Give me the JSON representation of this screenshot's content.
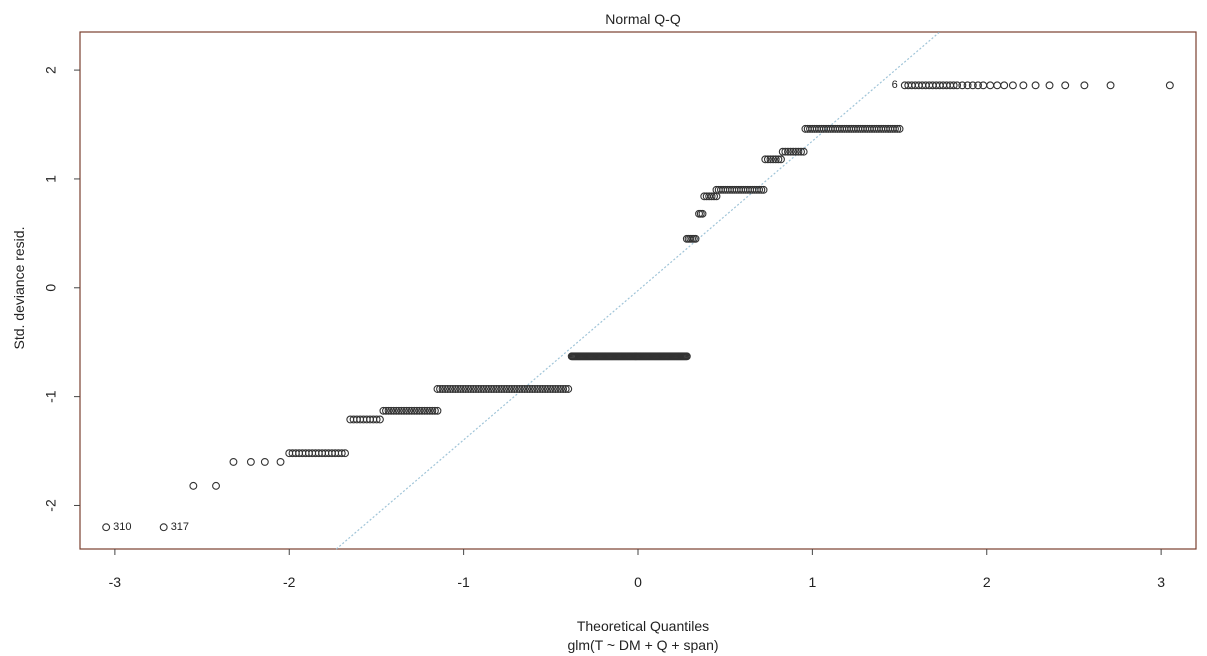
{
  "chart_data": {
    "type": "scatter",
    "title": "Normal Q-Q",
    "xlabel": "Theoretical Quantiles",
    "xlabel_sub": "glm(T ~ DM + Q + span)",
    "ylabel": "Std. deviance resid.",
    "xlim": [
      -3.2,
      3.2
    ],
    "ylim": [
      -2.4,
      2.35
    ],
    "x_ticks": [
      -3,
      -2,
      -1,
      0,
      1,
      2,
      3
    ],
    "y_ticks": [
      -2,
      -1,
      0,
      1,
      2
    ],
    "reference_line": {
      "points": [
        [
          -1.73,
          -2.4
        ],
        [
          1.73,
          2.35
        ]
      ],
      "color": "#9fc4d8",
      "style": "dotted"
    },
    "colors": {
      "points": "#333333",
      "frame": "#7a3f2f"
    },
    "groups": [
      {
        "y": -2.2,
        "x": [
          -3.05
        ]
      },
      {
        "y": -2.2,
        "x": [
          -2.72
        ]
      },
      {
        "y": -1.82,
        "x": [
          -2.55,
          -2.42
        ]
      },
      {
        "y": -1.6,
        "x": [
          -2.32,
          -2.22,
          -2.14,
          -2.05
        ]
      },
      {
        "y": -1.52,
        "x_start": -2.0,
        "x_end": -1.68,
        "n": 18
      },
      {
        "y": -1.21,
        "x_start": -1.65,
        "x_end": -1.48,
        "n": 10
      },
      {
        "y": -1.13,
        "x_start": -1.46,
        "x_end": -1.15,
        "n": 22
      },
      {
        "y": -0.93,
        "x_start": -1.15,
        "x_end": -0.4,
        "n": 52
      },
      {
        "y": -0.63,
        "x_start": -0.38,
        "x_end": 0.28,
        "n": 110
      },
      {
        "y": 0.45,
        "x_start": 0.28,
        "x_end": 0.33,
        "n": 6
      },
      {
        "y": 0.68,
        "x_start": 0.35,
        "x_end": 0.37,
        "n": 3
      },
      {
        "y": 0.84,
        "x_start": 0.38,
        "x_end": 0.45,
        "n": 6
      },
      {
        "y": 0.9,
        "x_start": 0.45,
        "x_end": 0.72,
        "n": 22
      },
      {
        "y": 1.18,
        "x_start": 0.73,
        "x_end": 0.82,
        "n": 7
      },
      {
        "y": 1.25,
        "x_start": 0.83,
        "x_end": 0.95,
        "n": 9
      },
      {
        "y": 1.46,
        "x_start": 0.96,
        "x_end": 1.5,
        "n": 42
      },
      {
        "y": 1.86,
        "x": [
          1.53,
          1.55,
          1.57,
          1.59,
          1.61,
          1.63,
          1.65,
          1.67,
          1.69,
          1.71,
          1.73,
          1.75,
          1.77,
          1.79,
          1.81,
          1.83,
          1.86,
          1.89,
          1.92,
          1.95,
          1.98,
          2.02,
          2.06,
          2.1,
          2.15,
          2.21,
          2.28,
          2.36,
          2.45,
          2.56,
          2.71,
          3.05
        ]
      }
    ],
    "point_labels": [
      {
        "text": "310",
        "x": -3.05,
        "y": -2.2,
        "side": "right"
      },
      {
        "text": "317",
        "x": -2.72,
        "y": -2.2,
        "side": "right"
      },
      {
        "text": "6",
        "x": 1.53,
        "y": 1.86,
        "side": "left"
      }
    ]
  }
}
